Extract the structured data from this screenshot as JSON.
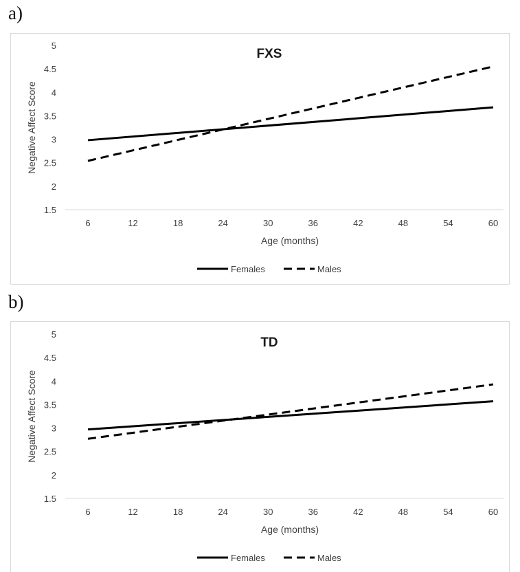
{
  "figure": {
    "panel_labels": [
      "a)",
      "b)"
    ]
  },
  "colors": {
    "line": "#000000",
    "axis": "#d9d9d9",
    "text": "#404040",
    "title": "#1a1a1a"
  },
  "chart_data": [
    {
      "type": "line",
      "title": "FXS",
      "xlabel": "Age (months)",
      "ylabel": "Negative Affect Score",
      "categories": [
        "6",
        "12",
        "18",
        "24",
        "30",
        "36",
        "42",
        "48",
        "54",
        "60"
      ],
      "ylim": [
        1.5,
        5
      ],
      "yticks": [
        "1.5",
        "2",
        "2.5",
        "3",
        "3.5",
        "4",
        "4.5",
        "5"
      ],
      "grid": false,
      "legend_position": "bottom",
      "series": [
        {
          "name": "Females",
          "style": "solid",
          "x": [
            6,
            60
          ],
          "values": [
            2.98,
            3.68
          ]
        },
        {
          "name": "Males",
          "style": "dashed",
          "x": [
            6,
            60
          ],
          "values": [
            2.54,
            4.55
          ]
        }
      ]
    },
    {
      "type": "line",
      "title": "TD",
      "xlabel": "Age (months)",
      "ylabel": "Negative Affect Score",
      "categories": [
        "6",
        "12",
        "18",
        "24",
        "30",
        "36",
        "42",
        "48",
        "54",
        "60"
      ],
      "ylim": [
        1.5,
        5
      ],
      "yticks": [
        "1.5",
        "2",
        "2.5",
        "3",
        "3.5",
        "4",
        "4.5",
        "5"
      ],
      "grid": false,
      "legend_position": "bottom",
      "series": [
        {
          "name": "Females",
          "style": "solid",
          "x": [
            6,
            60
          ],
          "values": [
            2.97,
            3.57
          ]
        },
        {
          "name": "Males",
          "style": "dashed",
          "x": [
            6,
            60
          ],
          "values": [
            2.77,
            3.93
          ]
        }
      ]
    }
  ]
}
